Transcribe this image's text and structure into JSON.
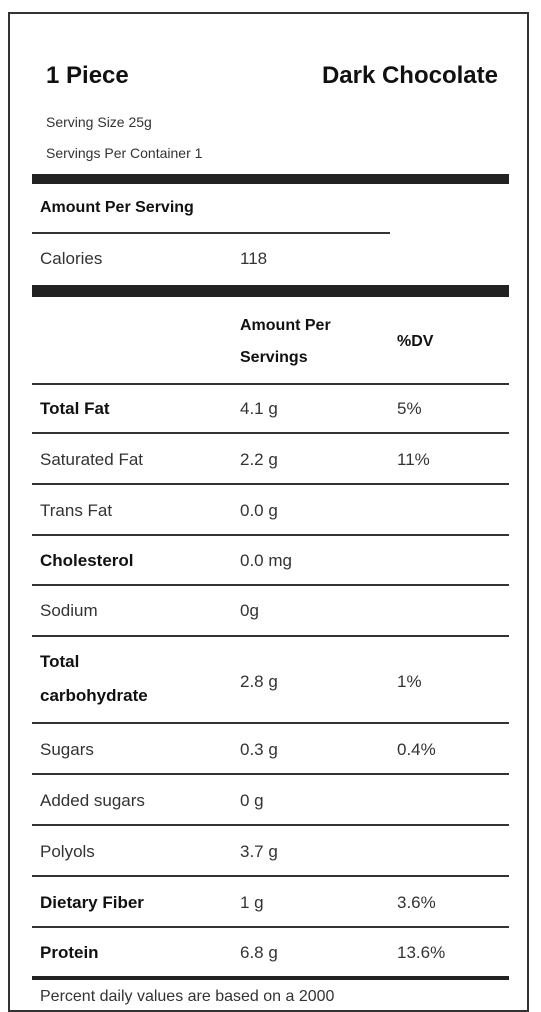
{
  "header": {
    "title_left": "1 Piece",
    "title_right": "Dark Chocolate",
    "serving_size": "Serving Size 25g",
    "servings_per_container": "Servings Per Container 1"
  },
  "amount_per_serving": "Amount Per Serving",
  "calories": {
    "label": "Calories",
    "value": "118"
  },
  "columns": {
    "amount_line1": "Amount Per",
    "amount_line2": "Servings",
    "dv": "%DV"
  },
  "nutrients": [
    {
      "name": "Total Fat",
      "amount": "4.1 g",
      "dv": "5%",
      "bold": true
    },
    {
      "name": "Saturated Fat",
      "amount": "2.2 g",
      "dv": "11%",
      "bold": false
    },
    {
      "name": "Trans Fat",
      "amount": "0.0 g",
      "dv": "",
      "bold": false
    },
    {
      "name": "Cholesterol",
      "amount": "0.0 mg",
      "dv": "",
      "bold": true
    },
    {
      "name": "Sodium",
      "amount": "0g",
      "dv": "",
      "bold": false
    },
    {
      "name_line1": "Total",
      "name_line2": "carbohydrate",
      "amount": "2.8 g",
      "dv": "1%",
      "bold": true
    },
    {
      "name": "Sugars",
      "amount": "0.3 g",
      "dv": "0.4%",
      "bold": false
    },
    {
      "name": "Added sugars",
      "amount": "0 g",
      "dv": "",
      "bold": false
    },
    {
      "name": "Polyols",
      "amount": "3.7 g",
      "dv": "",
      "bold": false
    },
    {
      "name": "Dietary Fiber",
      "amount": "1 g",
      "dv": "3.6%",
      "bold": true
    },
    {
      "name": "Protein",
      "amount": "6.8 g",
      "dv": "13.6%",
      "bold": true
    }
  ],
  "footer_cut": "Percent daily values are based on a 2000"
}
